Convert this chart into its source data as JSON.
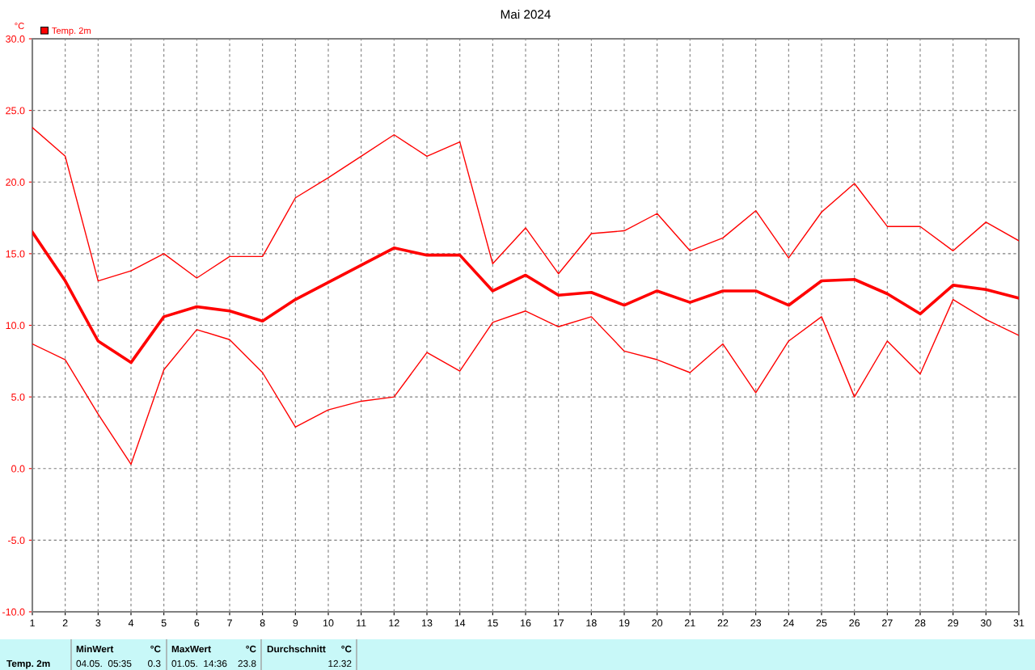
{
  "chart_data": {
    "type": "line",
    "title": "Mai 2024",
    "ylabel": "°C",
    "x": [
      1,
      2,
      3,
      4,
      5,
      6,
      7,
      8,
      9,
      10,
      11,
      12,
      13,
      14,
      15,
      16,
      17,
      18,
      19,
      20,
      21,
      22,
      23,
      24,
      25,
      26,
      27,
      28,
      29,
      30,
      31
    ],
    "series": [
      {
        "color": "#ff0000",
        "values": [
          23.8,
          21.8,
          13.1,
          13.8,
          15.0,
          13.3,
          14.8,
          14.8,
          18.9,
          20.3,
          21.8,
          23.3,
          21.8,
          22.8,
          14.3,
          16.8,
          13.6,
          16.4,
          16.6,
          17.8,
          15.2,
          16.1,
          18.0,
          14.7,
          17.9,
          19.9,
          16.9,
          16.9,
          15.2,
          17.2,
          15.9
        ]
      },
      {
        "name": "Temp. 2m",
        "color": "#ff0000",
        "values": [
          16.5,
          13.1,
          8.9,
          7.4,
          10.6,
          11.3,
          11.0,
          10.3,
          11.8,
          13.0,
          14.2,
          15.4,
          14.9,
          14.9,
          12.4,
          13.5,
          12.1,
          12.3,
          11.4,
          12.4,
          11.6,
          12.4,
          12.4,
          11.4,
          13.1,
          13.2,
          12.2,
          10.8,
          12.8,
          12.5,
          11.9
        ]
      },
      {
        "color": "#ff0000",
        "values": [
          8.7,
          7.6,
          3.8,
          0.3,
          6.9,
          9.7,
          9.0,
          6.7,
          2.9,
          4.1,
          4.7,
          5.0,
          8.1,
          6.8,
          10.2,
          11.0,
          9.9,
          10.6,
          8.2,
          7.6,
          6.7,
          8.7,
          5.3,
          8.9,
          10.6,
          5.0,
          8.9,
          6.6,
          11.8,
          10.4,
          9.3
        ]
      }
    ],
    "xlim": [
      1,
      31
    ],
    "xticks": [
      1,
      2,
      3,
      4,
      5,
      6,
      7,
      8,
      9,
      10,
      11,
      12,
      13,
      14,
      15,
      16,
      17,
      18,
      19,
      20,
      21,
      22,
      23,
      24,
      25,
      26,
      27,
      28,
      29,
      30,
      31
    ],
    "ylim": [
      -10,
      30
    ],
    "yticks": [
      {
        "value": -10,
        "label": "-10.0"
      },
      {
        "value": -5,
        "label": "-5.0"
      },
      {
        "value": 0,
        "label": "0.0"
      },
      {
        "value": 5,
        "label": "5.0"
      },
      {
        "value": 10,
        "label": "10.0"
      },
      {
        "value": 15,
        "label": "15.0"
      },
      {
        "value": 20,
        "label": "20.0"
      },
      {
        "value": 25,
        "label": "25.0"
      },
      {
        "value": 30,
        "label": "30.0"
      }
    ],
    "grid": true,
    "legend": "top left",
    "marker": "none",
    "line_style": "solid",
    "annotations": [
      "Temp. 2m",
      "MinWert",
      "°C",
      "04.05.  05:35",
      "0.3",
      "MaxWert",
      "°C",
      "01.05.  14:36",
      "23.8",
      "Durchschnitt",
      "°C",
      "12.32"
    ]
  }
}
